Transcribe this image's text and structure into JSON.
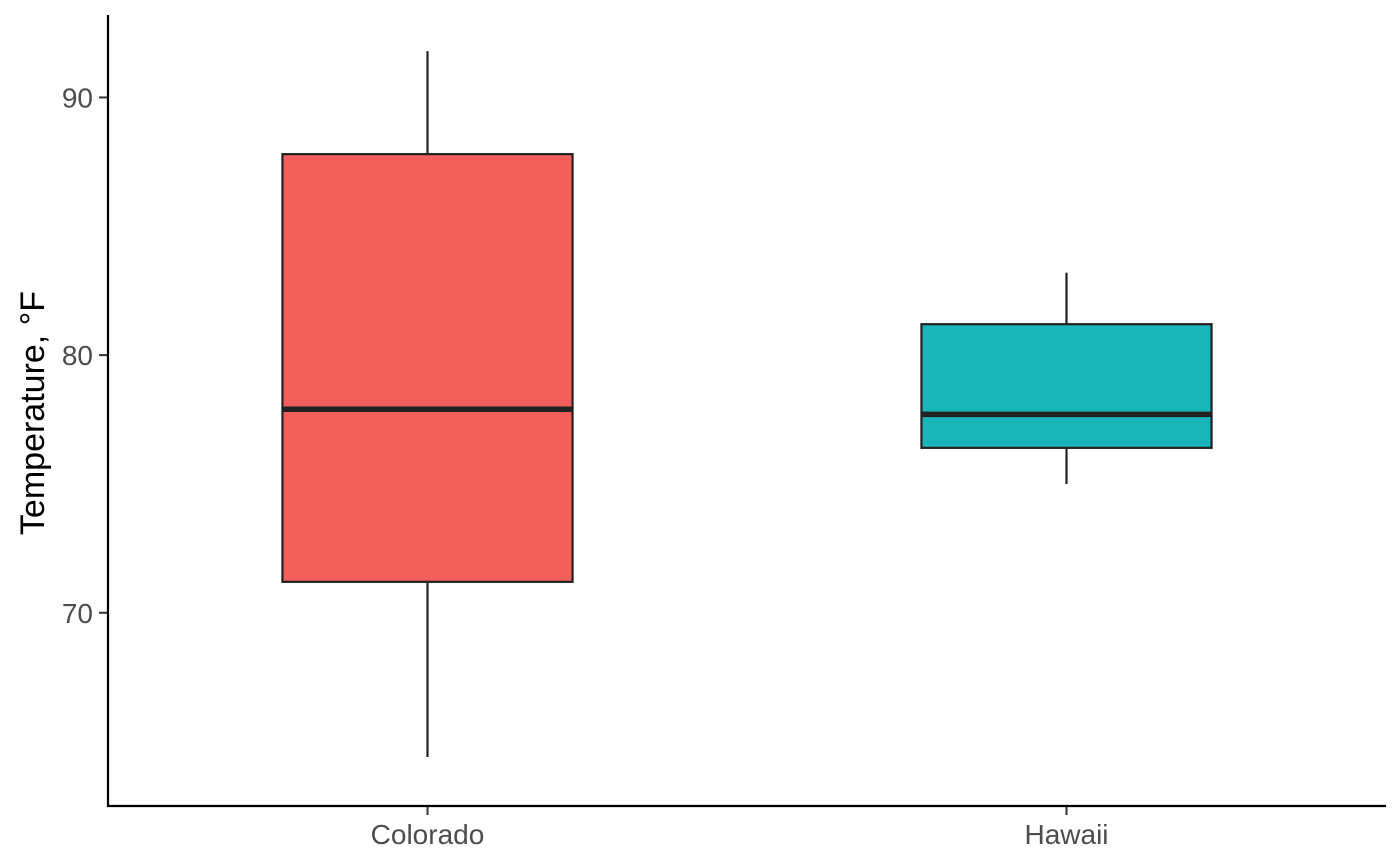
{
  "chart_data": {
    "type": "boxplot",
    "title": "",
    "xlabel": "",
    "ylabel": "Temperature, °F",
    "ylim": [
      62.5,
      93.2
    ],
    "yticks": [
      70,
      80,
      90
    ],
    "grid": false,
    "legend": "none",
    "categories": [
      "Colorado",
      "Hawaii"
    ],
    "boxes": [
      {
        "category": "Colorado",
        "min": 64.4,
        "q1": 71.2,
        "median": 77.9,
        "q3": 87.8,
        "max": 91.8,
        "color": "#F35F5B"
      },
      {
        "category": "Hawaii",
        "min": 75.0,
        "q1": 76.4,
        "median": 77.7,
        "q3": 81.2,
        "max": 83.2,
        "color": "#1AB4B9"
      }
    ]
  }
}
